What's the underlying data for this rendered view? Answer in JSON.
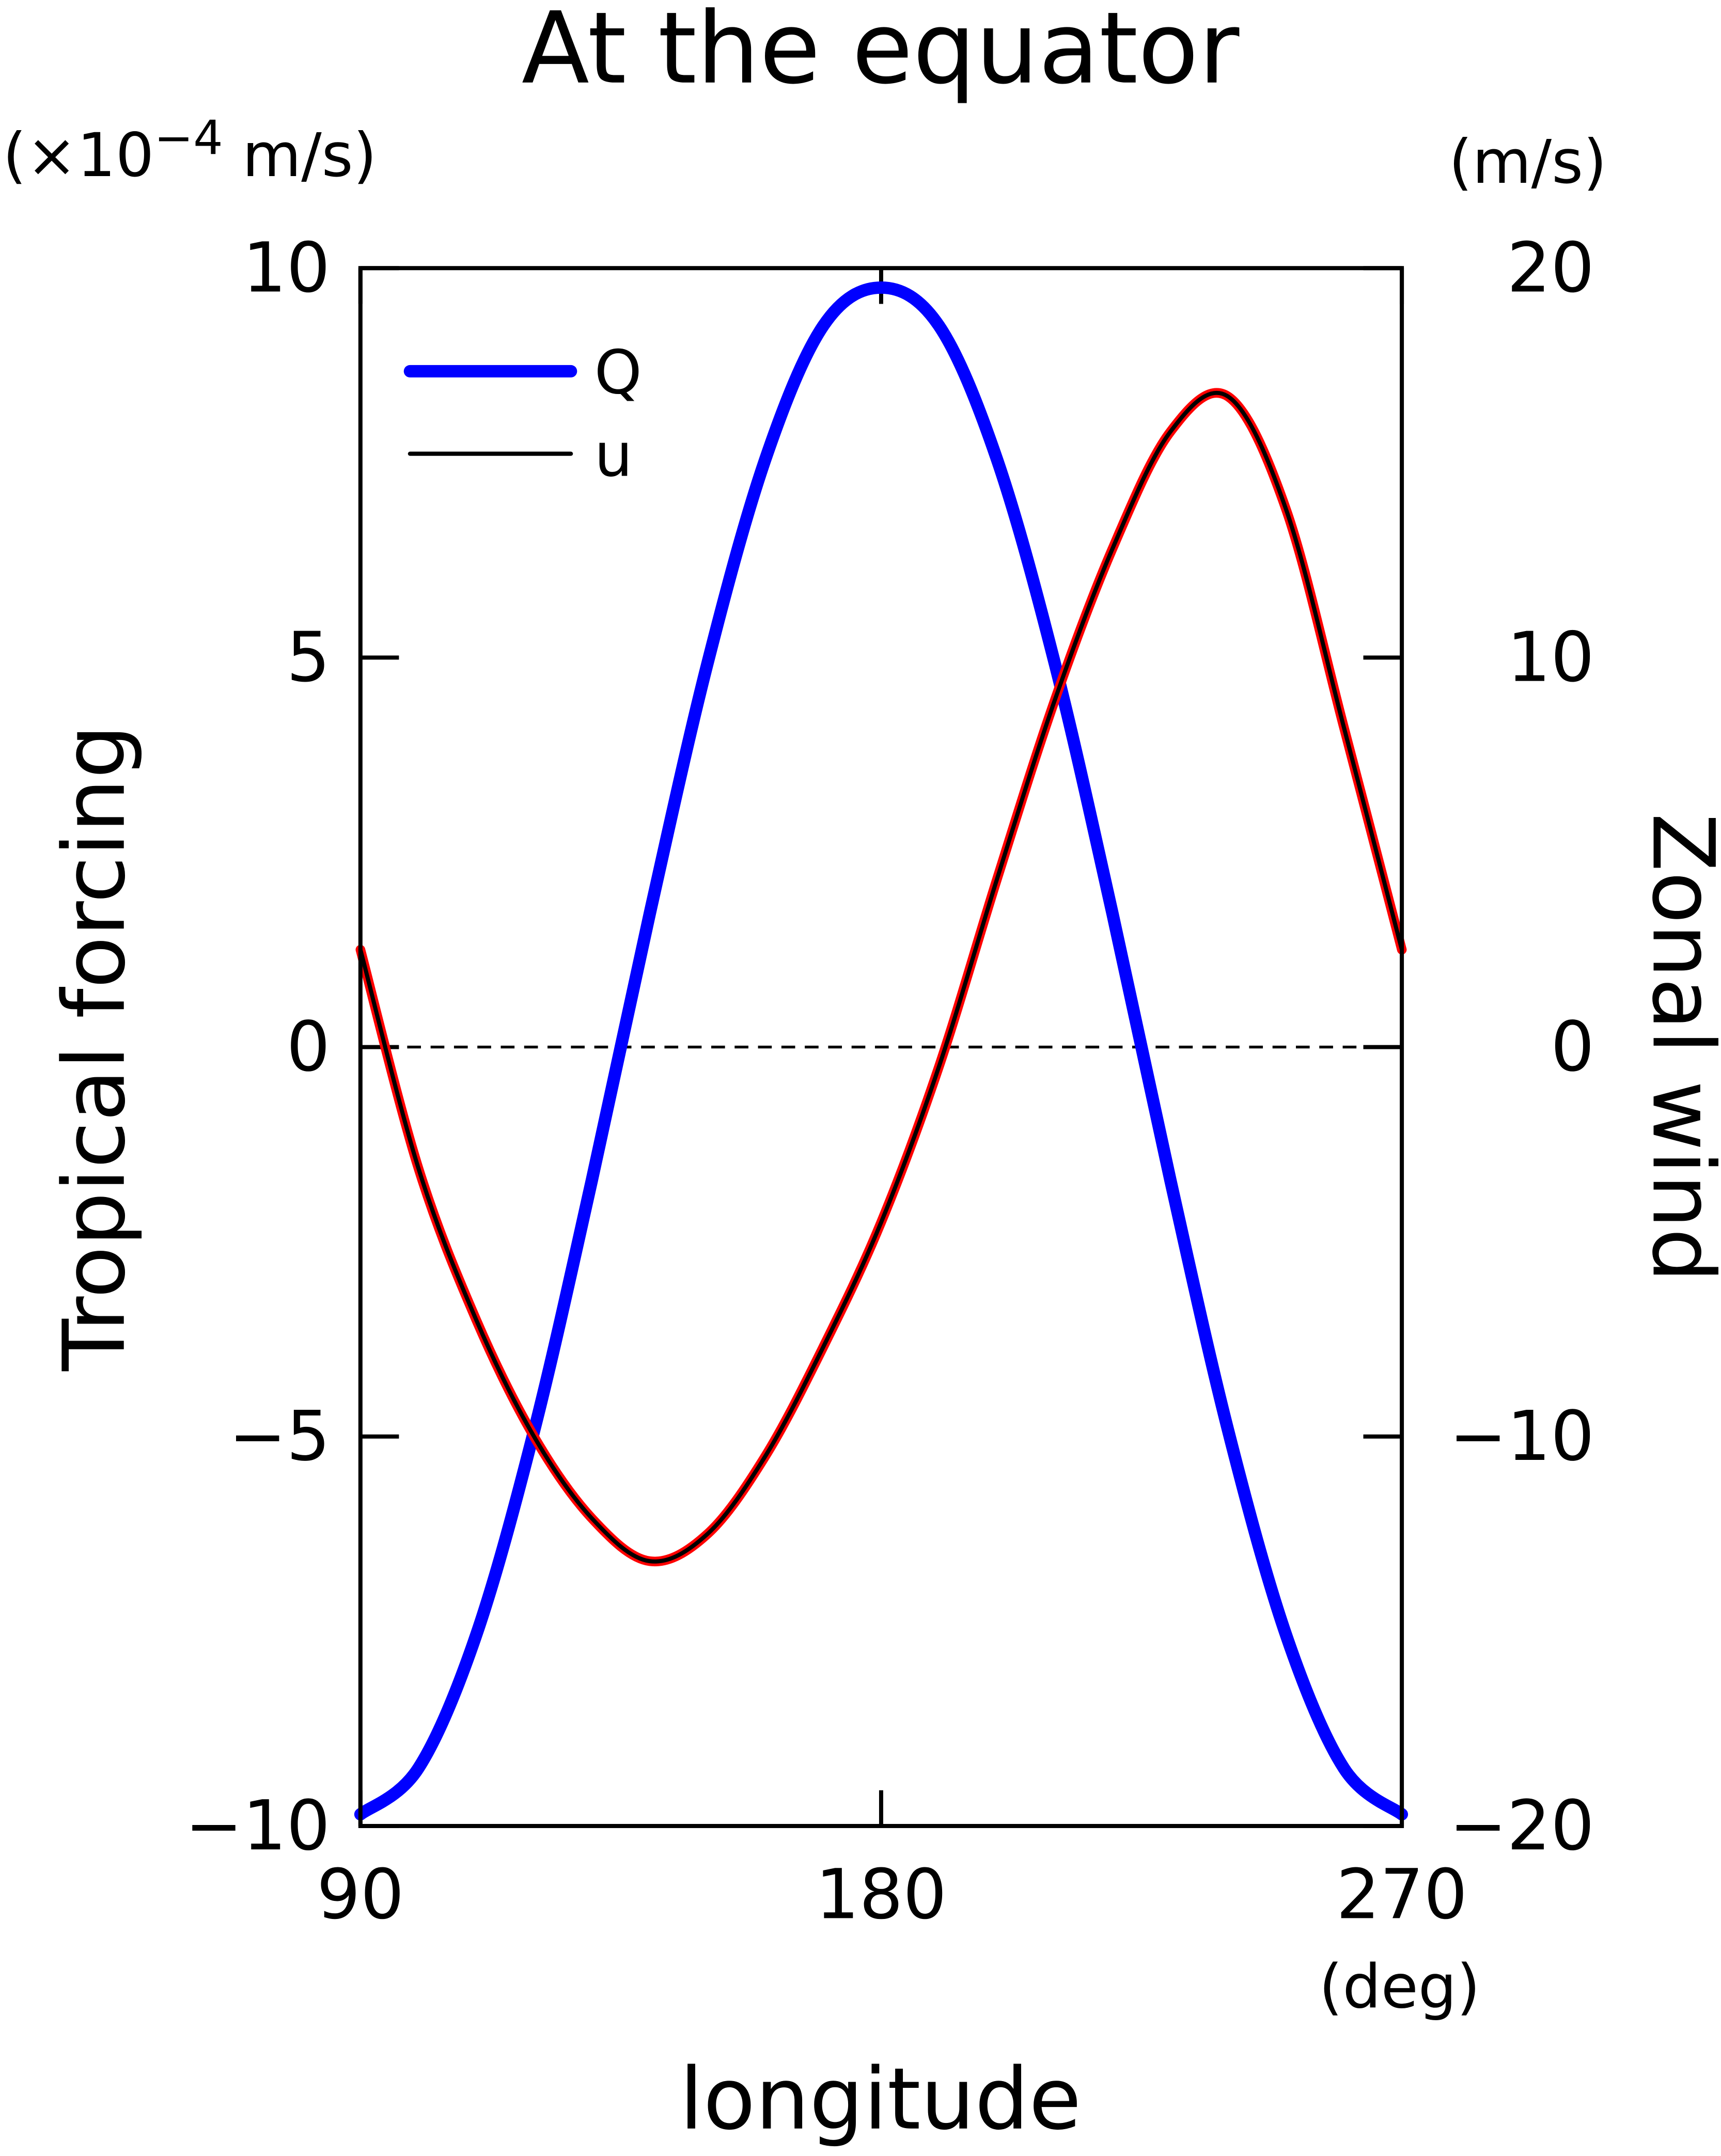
{
  "chart_data": {
    "type": "line",
    "title": "At the equator",
    "ylabel": "Tropical forcing",
    "y_unit": [
      "(×10",
      "−4",
      " m/s)"
    ],
    "y2label": "Zonal wind",
    "y2_unit": "(m/s)",
    "xlabel": "longitude",
    "x_unit": "(deg)",
    "x": [
      90,
      100,
      110,
      120,
      130,
      140,
      150,
      160,
      170,
      180,
      190,
      200,
      210,
      220,
      230,
      240,
      250,
      260,
      270
    ],
    "series": [
      {
        "name": "Q",
        "color": "#0000ff",
        "width": 9,
        "axis": "y",
        "values": [
          -9.85,
          -9.26,
          -7.55,
          -4.93,
          -1.71,
          1.71,
          4.93,
          7.55,
          9.26,
          9.75,
          9.26,
          7.55,
          4.93,
          1.71,
          -1.71,
          -4.93,
          -7.55,
          -9.26,
          -9.85
        ]
      },
      {
        "name": "u",
        "color": "#000000",
        "edge_color": "#ff0000",
        "width": 3,
        "axis": "y2",
        "values": [
          2.5,
          -3.1,
          -7.0,
          -10.0,
          -12.1,
          -13.2,
          -12.5,
          -10.5,
          -7.7,
          -4.5,
          -0.5,
          4.3,
          8.9,
          12.8,
          15.8,
          16.7,
          13.8,
          8.2,
          2.5
        ]
      }
    ],
    "xlim": [
      90,
      270
    ],
    "xticks": [
      90,
      180,
      270
    ],
    "ylim": [
      -10,
      10
    ],
    "yticks": [
      {
        "value": -10,
        "label": "−10"
      },
      {
        "value": -5,
        "label": "−5"
      },
      0,
      5,
      10
    ],
    "y2lim": [
      -20,
      20
    ],
    "y2ticks": [
      {
        "value": -20,
        "label": "−20"
      },
      {
        "value": -10,
        "label": "−10"
      },
      0,
      10,
      20
    ],
    "zero_line": true,
    "legend": "upper-left"
  }
}
